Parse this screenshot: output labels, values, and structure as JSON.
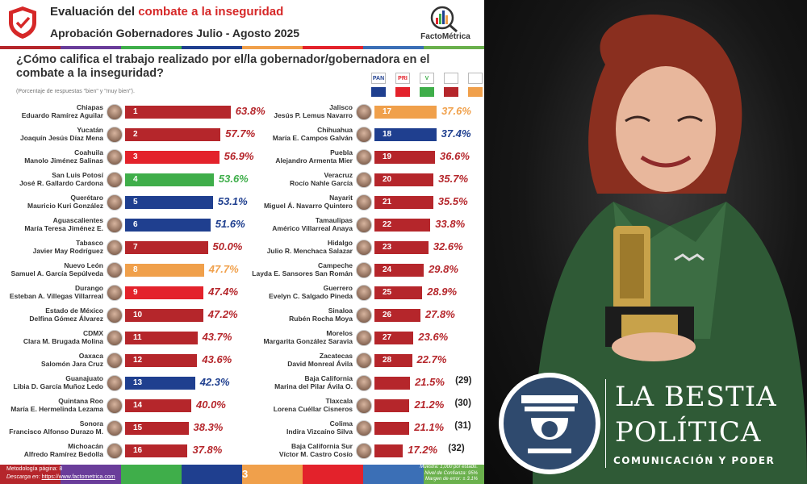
{
  "header": {
    "title_prefix": "Evaluación del ",
    "title_accent": "combate a la inseguridad",
    "subtitle": "Aprobación Gobernadores Julio - Agosto 2025",
    "brand": "FactoMétrica",
    "question": "¿Cómo califica el trabajo realizado por el/la gobernador/gobernadora en el combate a la inseguridad?",
    "note": "(Porcentaje de respuestas \"bien\" y \"muy bien\")."
  },
  "colors": {
    "PAN": "#1f3f8f",
    "PRI": "#e3222b",
    "PVEM": "#3fae4a",
    "MORENA": "#b5262b",
    "MC": "#f0a04b",
    "text_red": "#b5262b",
    "bar_stripe": [
      "#b5262b",
      "#6a3d9a",
      "#3fae4a",
      "#1f3f8f",
      "#f0a04b",
      "#e3222b",
      "#3b6fb6",
      "#6ab04c"
    ]
  },
  "legend_parties": [
    {
      "party": "PAN",
      "icon": "pan-logo-icon"
    },
    {
      "party": "PRI",
      "icon": "pri-logo-icon"
    },
    {
      "party": "PVEM",
      "icon": "pvem-logo-icon"
    },
    {
      "party": "MORENA",
      "icon": "morena-logo-icon"
    },
    {
      "party": "MC",
      "icon": "mc-logo-icon"
    }
  ],
  "chart_data": {
    "type": "bar",
    "title": "Aprobación Gobernadores Julio - Agosto 2025",
    "ylim": [
      0,
      100
    ],
    "series": [
      {
        "rank": 1,
        "state": "Chiapas",
        "governor": "Eduardo Ramírez Aguilar",
        "value": 63.8,
        "label": "63.8%",
        "party": "MORENA"
      },
      {
        "rank": 2,
        "state": "Yucatán",
        "governor": "Joaquín Jesús Díaz Mena",
        "value": 57.7,
        "label": "57.7%",
        "party": "MORENA"
      },
      {
        "rank": 3,
        "state": "Coahuila",
        "governor": "Manolo Jiménez Salinas",
        "value": 56.9,
        "label": "56.9%",
        "party": "PRI"
      },
      {
        "rank": 4,
        "state": "San Luis Potosí",
        "governor": "José R. Gallardo Cardona",
        "value": 53.6,
        "label": "53.6%",
        "party": "PVEM"
      },
      {
        "rank": 5,
        "state": "Querétaro",
        "governor": "Mauricio Kuri González",
        "value": 53.1,
        "label": "53.1%",
        "party": "PAN"
      },
      {
        "rank": 6,
        "state": "Aguascalientes",
        "governor": "María Teresa Jiménez E.",
        "value": 51.6,
        "label": "51.6%",
        "party": "PAN"
      },
      {
        "rank": 7,
        "state": "Tabasco",
        "governor": "Javier May Rodríguez",
        "value": 50.0,
        "label": "50.0%",
        "party": "MORENA"
      },
      {
        "rank": 8,
        "state": "Nuevo León",
        "governor": "Samuel A. García Sepúlveda",
        "value": 47.7,
        "label": "47.7%",
        "party": "MC"
      },
      {
        "rank": 9,
        "state": "Durango",
        "governor": "Esteban A. Villegas Villarreal",
        "value": 47.4,
        "label": "47.4%",
        "party": "PRI"
      },
      {
        "rank": 10,
        "state": "Estado de México",
        "governor": "Delfina Gómez Álvarez",
        "value": 47.2,
        "label": "47.2%",
        "party": "MORENA"
      },
      {
        "rank": 11,
        "state": "CDMX",
        "governor": "Clara M. Brugada Molina",
        "value": 43.7,
        "label": "43.7%",
        "party": "MORENA"
      },
      {
        "rank": 12,
        "state": "Oaxaca",
        "governor": "Salomón Jara Cruz",
        "value": 43.6,
        "label": "43.6%",
        "party": "MORENA"
      },
      {
        "rank": 13,
        "state": "Guanajuato",
        "governor": "Libia D. García Muñoz Ledo",
        "value": 42.3,
        "label": "42.3%",
        "party": "PAN"
      },
      {
        "rank": 14,
        "state": "Quintana Roo",
        "governor": "María E. Hermelinda Lezama",
        "value": 40.0,
        "label": "40.0%",
        "party": "MORENA"
      },
      {
        "rank": 15,
        "state": "Sonora",
        "governor": "Francisco Alfonso Durazo M.",
        "value": 38.3,
        "label": "38.3%",
        "party": "MORENA"
      },
      {
        "rank": 16,
        "state": "Michoacán",
        "governor": "Alfredo Ramírez Bedolla",
        "value": 37.8,
        "label": "37.8%",
        "party": "MORENA"
      },
      {
        "rank": 17,
        "state": "Jalisco",
        "governor": "Jesús P. Lemus Navarro",
        "value": 37.6,
        "label": "37.6%",
        "party": "MC"
      },
      {
        "rank": 18,
        "state": "Chihuahua",
        "governor": "María E. Campos Galván",
        "value": 37.4,
        "label": "37.4%",
        "party": "PAN"
      },
      {
        "rank": 19,
        "state": "Puebla",
        "governor": "Alejandro Armenta Mier",
        "value": 36.6,
        "label": "36.6%",
        "party": "MORENA"
      },
      {
        "rank": 20,
        "state": "Veracruz",
        "governor": "Rocío Nahle García",
        "value": 35.7,
        "label": "35.7%",
        "party": "MORENA"
      },
      {
        "rank": 21,
        "state": "Nayarit",
        "governor": "Miguel Á. Navarro Quintero",
        "value": 35.5,
        "label": "35.5%",
        "party": "MORENA"
      },
      {
        "rank": 22,
        "state": "Tamaulipas",
        "governor": "Américo Villarreal Anaya",
        "value": 33.8,
        "label": "33.8%",
        "party": "MORENA"
      },
      {
        "rank": 23,
        "state": "Hidalgo",
        "governor": "Julio R. Menchaca Salazar",
        "value": 32.6,
        "label": "32.6%",
        "party": "MORENA"
      },
      {
        "rank": 24,
        "state": "Campeche",
        "governor": "Layda E. Sansores San Román",
        "value": 29.8,
        "label": "29.8%",
        "party": "MORENA"
      },
      {
        "rank": 25,
        "state": "Guerrero",
        "governor": "Evelyn C. Salgado Pineda",
        "value": 28.9,
        "label": "28.9%",
        "party": "MORENA"
      },
      {
        "rank": 26,
        "state": "Sinaloa",
        "governor": "Rubén Rocha Moya",
        "value": 27.8,
        "label": "27.8%",
        "party": "MORENA"
      },
      {
        "rank": 27,
        "state": "Morelos",
        "governor": "Margarita González Saravia",
        "value": 23.6,
        "label": "23.6%",
        "party": "MORENA"
      },
      {
        "rank": 28,
        "state": "Zacatecas",
        "governor": "David Monreal Ávila",
        "value": 22.7,
        "label": "22.7%",
        "party": "MORENA"
      },
      {
        "rank": 29,
        "state": "Baja California",
        "governor": "Marina del Pilar Ávila O.",
        "value": 21.5,
        "label": "21.5%",
        "party": "MORENA",
        "rank_label": "(29)"
      },
      {
        "rank": 30,
        "state": "Tlaxcala",
        "governor": "Lorena Cuéllar Cisneros",
        "value": 21.2,
        "label": "21.2%",
        "party": "MORENA",
        "rank_label": "(30)"
      },
      {
        "rank": 31,
        "state": "Colima",
        "governor": "Indira Vizcaíno Silva",
        "value": 21.1,
        "label": "21.1%",
        "party": "MORENA",
        "rank_label": "(31)"
      },
      {
        "rank": 32,
        "state": "Baja California Sur",
        "governor": "Víctor M. Castro Cosío",
        "value": 17.2,
        "label": "17.2%",
        "party": "MORENA",
        "rank_label": "(32)"
      }
    ]
  },
  "footer": {
    "methodology": "Metodología página: 8",
    "download_prefix": "Descarga en: ",
    "download_link": "https://www.factometrica.com",
    "page": "3",
    "sample": "Muestra: 1,000 por estado.",
    "confidence": "Nivel de Confianza: 95%",
    "margin": "Margen de error: ± 3.1%"
  },
  "overlay_brand": {
    "line1": "LA BESTIA",
    "line2": "POLÍTICA",
    "line3": "COMUNICACIÓN Y PODER"
  }
}
